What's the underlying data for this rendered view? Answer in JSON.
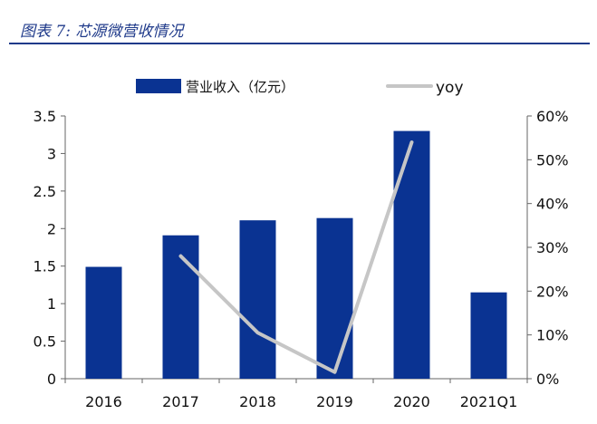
{
  "caption": "图表 7:  芯源微营收情况",
  "colors": {
    "bar": "#0a3392",
    "line": "#c6c6c6",
    "axis": "#666666",
    "caption": "#1f3a8a"
  },
  "chart_data": {
    "type": "bar",
    "categories": [
      "2016",
      "2017",
      "2018",
      "2019",
      "2020",
      "2021Q1"
    ],
    "series": [
      {
        "name": "营业收入（亿元）",
        "type": "bar",
        "axis": "left",
        "values": [
          1.49,
          1.91,
          2.11,
          2.14,
          3.3,
          1.15
        ]
      },
      {
        "name": "yoy",
        "type": "line",
        "axis": "right",
        "values": [
          null,
          0.28,
          0.105,
          0.015,
          0.54,
          null
        ]
      }
    ],
    "y_left": {
      "min": 0,
      "max": 3.5,
      "ticks": [
        "0",
        "0.5",
        "1",
        "1.5",
        "2",
        "2.5",
        "3",
        "3.5"
      ]
    },
    "y_right": {
      "min": 0,
      "max": 0.6,
      "ticks": [
        "0%",
        "10%",
        "20%",
        "30%",
        "40%",
        "50%",
        "60%"
      ]
    },
    "legend": "top-center",
    "grid": false
  }
}
